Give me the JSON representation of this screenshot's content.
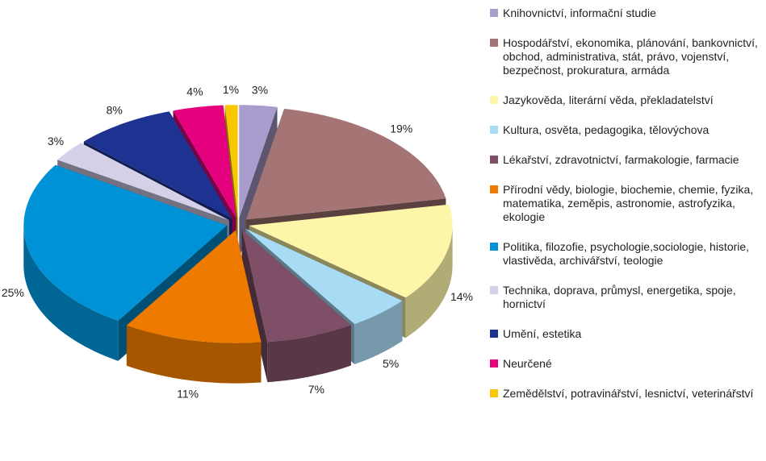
{
  "chart_data": {
    "type": "pie",
    "categories": [
      "Knihovnictví, informační studie",
      "Hospodářství, ekonomika, plánování, bankovnictví, obchod, administrativa, stát, právo, vojenství, bezpečnost, prokuratura, armáda",
      "Jazykověda, literární věda, překladatelství",
      "Kultura, osvěta, pedagogika, tělovýchova",
      "Lékařství, zdravotnictví, farmakologie, farmacie",
      "Přírodní vědy, biologie, biochemie, chemie, fyzika, matematika, zeměpis, astronomie, astrofyzika, ekologie",
      "Politika, filozofie, psychologie,sociologie, historie, vlastivěda, archivářství, teologie",
      "Technika, doprava, průmysl, energetika, spoje, hornictví",
      "Umění, estetika",
      "Neurčené",
      "Zemědělství, potravinářství, lesnictví, veterinářství"
    ],
    "values": [
      3,
      19,
      14,
      5,
      7,
      11,
      25,
      3,
      8,
      4,
      1
    ],
    "value_labels": [
      "3%",
      "19%",
      "14%",
      "5%",
      "7%",
      "11%",
      "25%",
      "3%",
      "8%",
      "4%",
      "1%"
    ],
    "colors": [
      "#a99dce",
      "#a57474",
      "#fdf6a8",
      "#a8dcf5",
      "#7e4f66",
      "#ee7b00",
      "#0092d6",
      "#d3d0e8",
      "#1e3391",
      "#e5007e",
      "#f9c700"
    ],
    "legend": "right"
  }
}
